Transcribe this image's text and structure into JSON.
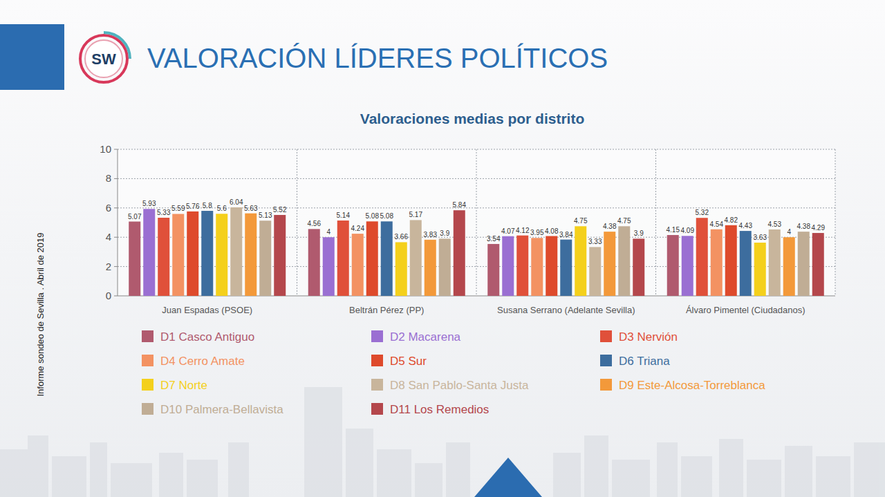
{
  "chart_data": {
    "type": "bar",
    "title": "VALORACIÓN LÍDERES POLÍTICOS",
    "subtitle": "Valoraciones medias por distrito",
    "annotations": [
      "SW",
      "Informe sondeo de Sevilla . Abril de 2019"
    ],
    "categories": [
      "Juan Espadas (PSOE)",
      "Beltrán Pérez (PP)",
      "Susana Serrano (Adelante Sevilla)",
      "Álvaro Pimentel (Ciudadanos)"
    ],
    "series": [
      {
        "name": "D1 Casco Antiguo",
        "color": "#b05a6e",
        "values": [
          5.07,
          4.56,
          3.54,
          4.15
        ]
      },
      {
        "name": "D2 Macarena",
        "color": "#9a6fd2",
        "values": [
          5.93,
          4,
          4.07,
          4.09
        ]
      },
      {
        "name": "D3 Nervión",
        "color": "#e0503a",
        "values": [
          5.33,
          5.14,
          4.12,
          5.32
        ]
      },
      {
        "name": "D4 Cerro Amate",
        "color": "#f39262",
        "values": [
          5.59,
          4.24,
          3.95,
          4.54
        ]
      },
      {
        "name": "D5 Sur",
        "color": "#de4a2c",
        "values": [
          5.76,
          5.08,
          4.08,
          4.82
        ]
      },
      {
        "name": "D6 Triana",
        "color": "#3d6d9e",
        "values": [
          5.8,
          5.08,
          3.84,
          4.43
        ]
      },
      {
        "name": "D7 Norte",
        "color": "#f4d01c",
        "values": [
          5.6,
          3.66,
          4.75,
          3.63
        ]
      },
      {
        "name": "D8 San Pablo-Santa Justa",
        "color": "#c8b59c",
        "values": [
          6.04,
          5.17,
          3.33,
          4.53
        ]
      },
      {
        "name": "D9 Este-Alcosa-Torreblanca",
        "color": "#f3993a",
        "values": [
          5.63,
          3.83,
          4.38,
          4
        ]
      },
      {
        "name": "D10 Palmera-Bellavista",
        "color": "#c0ad95",
        "values": [
          5.13,
          3.9,
          4.75,
          4.38
        ]
      },
      {
        "name": "D11 Los Remedios",
        "color": "#b4474c",
        "values": [
          5.52,
          5.84,
          3.9,
          4.29
        ]
      }
    ],
    "ylim": [
      0,
      10
    ],
    "yticks": [
      0,
      2,
      4,
      6,
      8,
      10
    ],
    "grid": true,
    "legend": "bottom",
    "data_labels": true
  }
}
